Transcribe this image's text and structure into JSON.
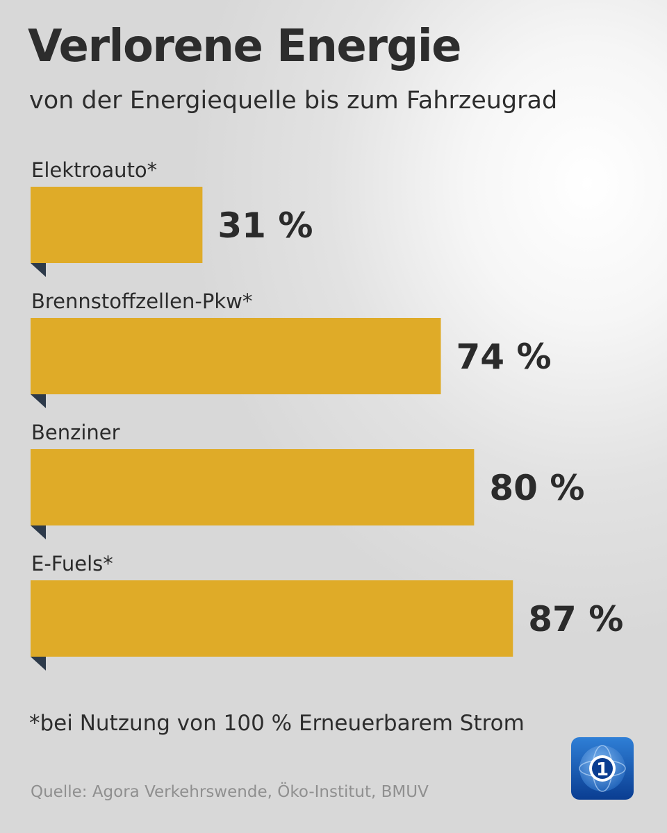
{
  "chart_data": {
    "type": "bar",
    "orientation": "horizontal",
    "title": "Verlorene Energie",
    "subtitle": "von der Energiequelle bis zum Fahrzeugrad",
    "categories": [
      "Elektroauto*",
      "Brennstoffzellen-Pkw*",
      "Benziner",
      "E-Fuels*"
    ],
    "values": [
      31,
      74,
      80,
      87
    ],
    "value_labels": [
      "31 %",
      "74 %",
      "80 %",
      "87 %"
    ],
    "unit": "%",
    "grid": false,
    "legend": "none",
    "bar_color": "#dfab28"
  },
  "footnote": "*bei Nutzung von 100 % Erneuerbarem Strom",
  "source": "Quelle: Agora Verkehrswende, Öko-Institut, BMUV",
  "logo": {
    "icon": "tagesschau-logo-icon",
    "text": "1",
    "colors": [
      "#0a3d91",
      "#2f7fd6"
    ]
  },
  "colors": {
    "bar": "#dfab28",
    "bar_corner": "#2d3a4a",
    "text": "#2d2d2d",
    "source_text": "#8f8f8f"
  }
}
